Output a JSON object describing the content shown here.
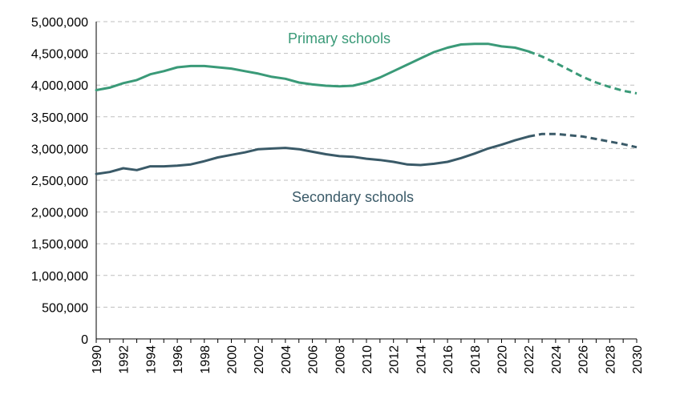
{
  "chart_data": {
    "type": "line",
    "ylim": [
      0,
      5000000
    ],
    "xlim": [
      1990,
      2030
    ],
    "y_ticks": [
      0,
      500000,
      1000000,
      1500000,
      2000000,
      2500000,
      3000000,
      3500000,
      4000000,
      4500000,
      5000000
    ],
    "y_tick_labels": [
      "0",
      "500,000",
      "1,000,000",
      "1,500,000",
      "2,000,000",
      "2,500,000",
      "3,000,000",
      "3,500,000",
      "4,000,000",
      "4,500,000",
      "5,000,000"
    ],
    "x_ticks": [
      1990,
      1992,
      1994,
      1996,
      1998,
      2000,
      2002,
      2004,
      2006,
      2008,
      2010,
      2012,
      2014,
      2016,
      2018,
      2020,
      2022,
      2024,
      2026,
      2028,
      2030
    ],
    "x_tick_labels": [
      "1990",
      "1992",
      "1994",
      "1996",
      "1998",
      "2000",
      "2002",
      "2004",
      "2006",
      "2008",
      "2010",
      "2012",
      "2014",
      "2016",
      "2018",
      "2020",
      "2022",
      "2024",
      "2026",
      "2028",
      "2030"
    ],
    "grid": true,
    "projection_start": 2022,
    "series": [
      {
        "name": "Primary schools",
        "color": "#3a9a78",
        "x": [
          1990,
          1991,
          1992,
          1993,
          1994,
          1995,
          1996,
          1997,
          1998,
          1999,
          2000,
          2001,
          2002,
          2003,
          2004,
          2005,
          2006,
          2007,
          2008,
          2009,
          2010,
          2011,
          2012,
          2013,
          2014,
          2015,
          2016,
          2017,
          2018,
          2019,
          2020,
          2021,
          2022,
          2023,
          2024,
          2025,
          2026,
          2027,
          2028,
          2029,
          2030
        ],
        "values": [
          3920000,
          3960000,
          4030000,
          4080000,
          4170000,
          4220000,
          4280000,
          4300000,
          4300000,
          4280000,
          4260000,
          4220000,
          4180000,
          4130000,
          4100000,
          4040000,
          4010000,
          3990000,
          3980000,
          3990000,
          4040000,
          4120000,
          4220000,
          4320000,
          4420000,
          4520000,
          4590000,
          4640000,
          4650000,
          4650000,
          4610000,
          4590000,
          4530000,
          4450000,
          4350000,
          4240000,
          4130000,
          4040000,
          3970000,
          3910000,
          3870000
        ]
      },
      {
        "name": "Secondary schools",
        "color": "#3a5a68",
        "x": [
          1990,
          1991,
          1992,
          1993,
          1994,
          1995,
          1996,
          1997,
          1998,
          1999,
          2000,
          2001,
          2002,
          2003,
          2004,
          2005,
          2006,
          2007,
          2008,
          2009,
          2010,
          2011,
          2012,
          2013,
          2014,
          2015,
          2016,
          2017,
          2018,
          2019,
          2020,
          2021,
          2022,
          2023,
          2024,
          2025,
          2026,
          2027,
          2028,
          2029,
          2030
        ],
        "values": [
          2600000,
          2630000,
          2690000,
          2660000,
          2720000,
          2720000,
          2730000,
          2750000,
          2800000,
          2860000,
          2900000,
          2940000,
          2990000,
          3000000,
          3010000,
          2990000,
          2950000,
          2910000,
          2880000,
          2870000,
          2840000,
          2820000,
          2790000,
          2750000,
          2740000,
          2760000,
          2790000,
          2850000,
          2920000,
          3000000,
          3060000,
          3130000,
          3190000,
          3230000,
          3230000,
          3210000,
          3190000,
          3150000,
          3110000,
          3070000,
          3020000
        ]
      }
    ]
  }
}
